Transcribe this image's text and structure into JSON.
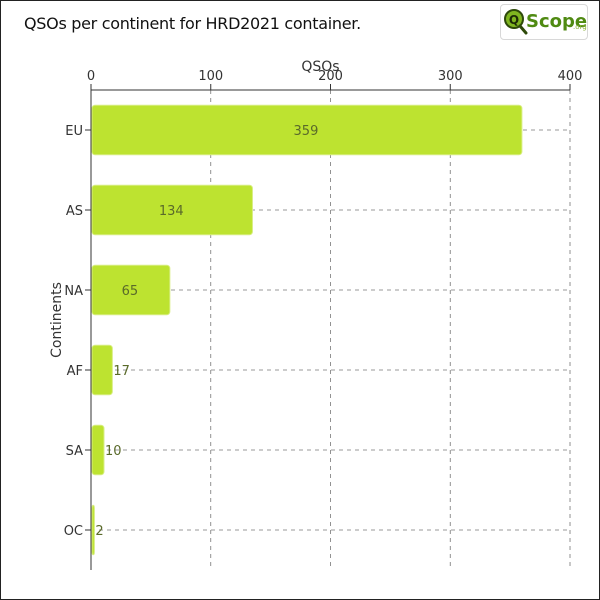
{
  "title": "QSOs per continent for HRD2021 container.",
  "logo": {
    "text_main": "Scope",
    "text_suffix": ".org",
    "icon": "magnifier-q-icon"
  },
  "colors": {
    "bar": "#bde330",
    "bar_stroke": "#d8ee82",
    "grid": "#777777",
    "axis": "#333333",
    "text": "#333333",
    "value_text": "#5a6a2a"
  },
  "chart_data": {
    "type": "bar",
    "orientation": "horizontal",
    "title": "QSOs per continent for HRD2021 container.",
    "xlabel": "QSOs",
    "ylabel": "Continents",
    "categories": [
      "EU",
      "AS",
      "NA",
      "AF",
      "SA",
      "OC"
    ],
    "values": [
      359,
      134,
      65,
      17,
      10,
      2
    ],
    "value_labels": [
      "359",
      "134",
      "65",
      "17",
      "10",
      "2"
    ],
    "xlim": [
      0,
      400
    ],
    "x_ticks": [
      "0",
      "100",
      "200",
      "300",
      "400"
    ],
    "grid": true,
    "x_axis_position": "top"
  }
}
